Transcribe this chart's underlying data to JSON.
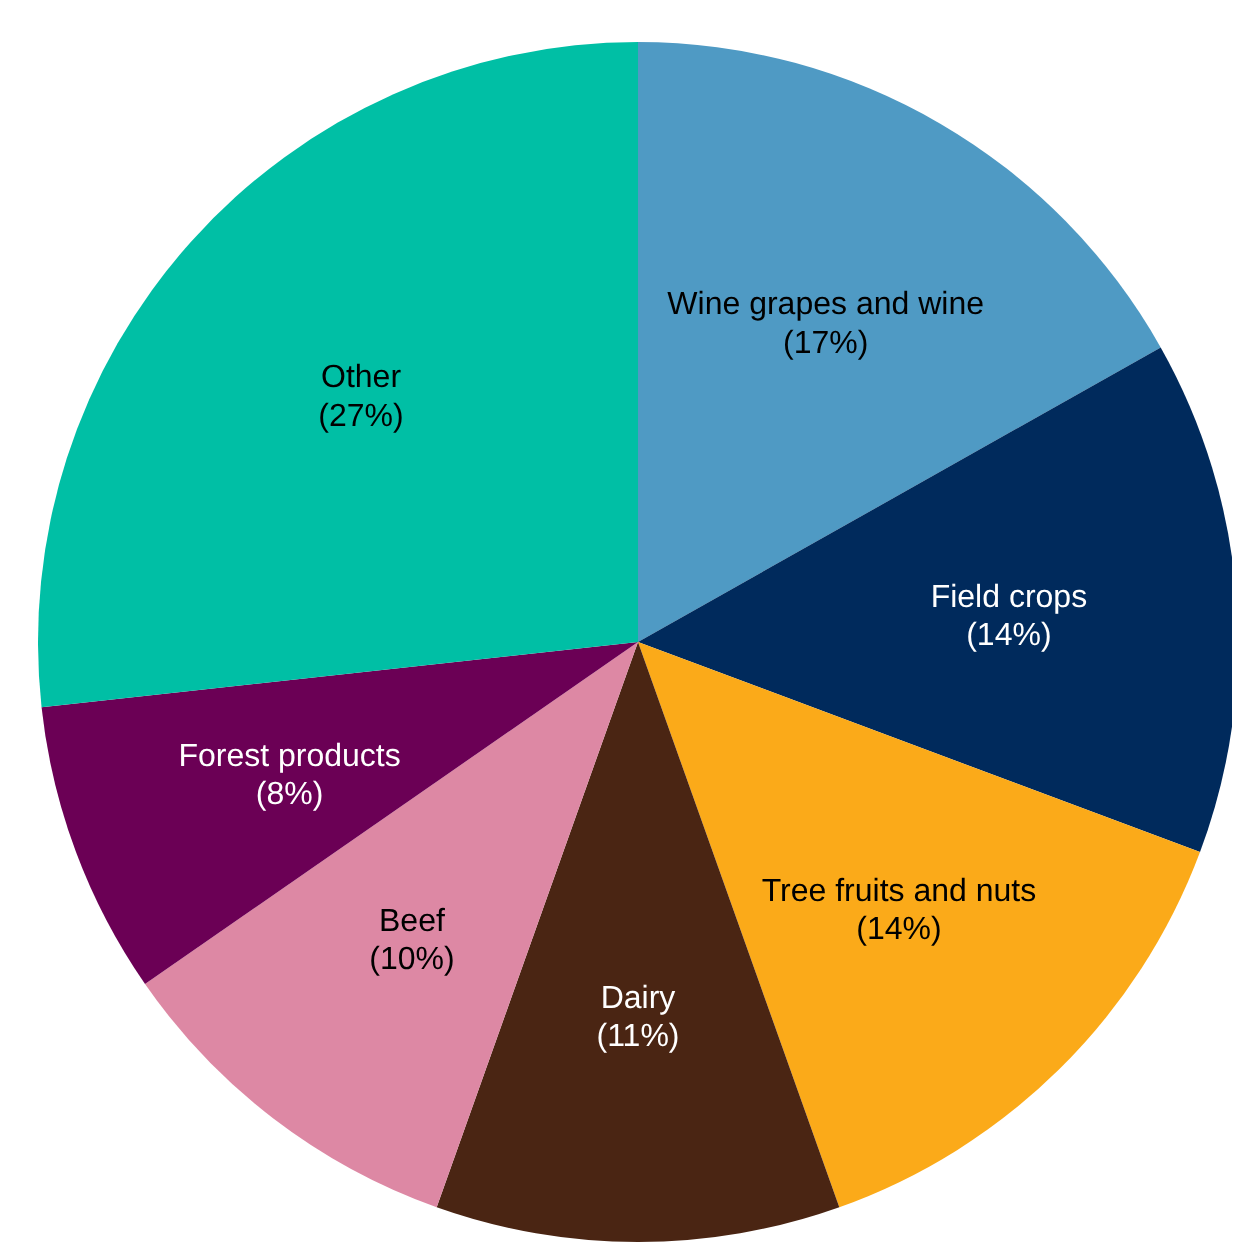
{
  "chart_data": {
    "type": "pie",
    "categories": [
      "Wine grapes and wine",
      "Field crops",
      "Tree fruits and nuts",
      "Dairy",
      "Beef",
      "Forest products",
      "Other"
    ],
    "values": [
      17,
      14,
      14,
      11,
      10,
      8,
      27
    ],
    "value_labels": [
      "(17%)",
      "(14%)",
      "(14%)",
      "(11%)",
      "(10%)",
      "(8%)",
      "(27%)"
    ],
    "colors": [
      "#4f9ac4",
      "#002a5c",
      "#fbaa19",
      "#4a2513",
      "#dd88a4",
      "#6b0055",
      "#00bfa5"
    ]
  }
}
